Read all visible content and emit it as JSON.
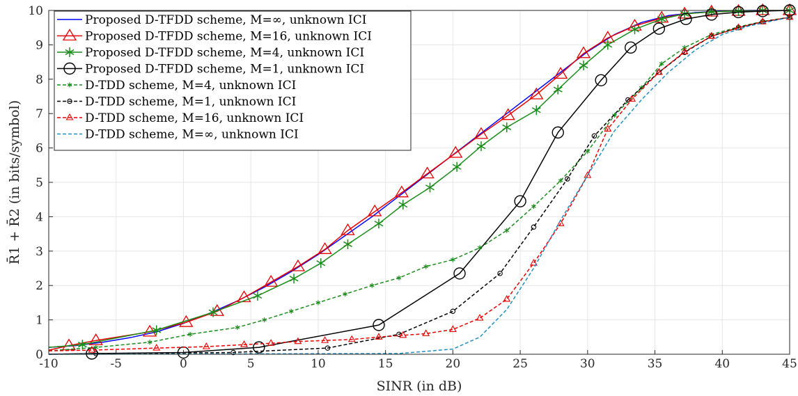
{
  "chart_data": {
    "type": "line",
    "title": "",
    "xlabel": "SINR (in dB)",
    "ylabel": "R̄1 + R̄2 (in bits/symbol)",
    "xlim": [
      -10,
      45
    ],
    "ylim": [
      0,
      10
    ],
    "xticks": [
      "-10",
      "-5",
      "0",
      "5",
      "10",
      "15",
      "20",
      "25",
      "30",
      "35",
      "40",
      "45"
    ],
    "yticks": [
      "0",
      "1",
      "2",
      "3",
      "4",
      "5",
      "6",
      "7",
      "8",
      "9",
      "10"
    ],
    "grid": true,
    "legend_position": "top-left",
    "series": [
      {
        "name": "Proposed D-TFDD scheme, M=∞, unknown ICI",
        "color": "#0000ff",
        "dash": "solid",
        "marker": "none",
        "points": [
          [
            -10,
            0.2
          ],
          [
            -8,
            0.25
          ],
          [
            -6,
            0.35
          ],
          [
            -4,
            0.48
          ],
          [
            -2,
            0.65
          ],
          [
            0,
            0.9
          ],
          [
            2,
            1.2
          ],
          [
            4,
            1.55
          ],
          [
            6,
            1.95
          ],
          [
            8,
            2.4
          ],
          [
            10,
            2.9
          ],
          [
            12,
            3.45
          ],
          [
            14,
            4.0
          ],
          [
            16,
            4.6
          ],
          [
            18,
            5.2
          ],
          [
            20,
            5.8
          ],
          [
            22,
            6.4
          ],
          [
            24,
            7.0
          ],
          [
            26,
            7.6
          ],
          [
            28,
            8.2
          ],
          [
            30,
            8.8
          ],
          [
            32,
            9.3
          ],
          [
            34,
            9.65
          ],
          [
            36,
            9.85
          ],
          [
            38,
            9.94
          ],
          [
            40,
            9.98
          ],
          [
            42,
            10.0
          ],
          [
            45,
            10.0
          ]
        ]
      },
      {
        "name": "Proposed D-TFDD scheme, M=16, unknown ICI",
        "color": "#e60000",
        "dash": "solid",
        "marker": "triangle",
        "points": [
          [
            -10,
            0.12
          ],
          [
            -8.5,
            0.25
          ],
          [
            -6.5,
            0.4
          ],
          [
            -2.5,
            0.65
          ],
          [
            0.2,
            0.93
          ],
          [
            2.5,
            1.25
          ],
          [
            4.5,
            1.65
          ],
          [
            6.5,
            2.1
          ],
          [
            8.5,
            2.55
          ],
          [
            10.5,
            3.05
          ],
          [
            12.2,
            3.6
          ],
          [
            14.2,
            4.15
          ],
          [
            16.2,
            4.7
          ],
          [
            18.1,
            5.25
          ],
          [
            20.2,
            5.85
          ],
          [
            22.1,
            6.4
          ],
          [
            24.1,
            6.95
          ],
          [
            26.2,
            7.55
          ],
          [
            28,
            8.15
          ],
          [
            29.7,
            8.75
          ],
          [
            31.5,
            9.2
          ],
          [
            33.5,
            9.55
          ],
          [
            35.5,
            9.78
          ],
          [
            37.2,
            9.9
          ],
          [
            39.2,
            9.96
          ],
          [
            41.2,
            9.98
          ],
          [
            43,
            10.0
          ],
          [
            45,
            10.0
          ]
        ]
      },
      {
        "name": "Proposed D-TFDD scheme, M=4, unknown ICI",
        "color": "#1a8c1a",
        "dash": "solid",
        "marker": "asterisk",
        "points": [
          [
            -10,
            0.2
          ],
          [
            -7.5,
            0.28
          ],
          [
            -2,
            0.7
          ],
          [
            2.2,
            1.22
          ],
          [
            5.5,
            1.7
          ],
          [
            8.2,
            2.2
          ],
          [
            10.2,
            2.65
          ],
          [
            12.2,
            3.2
          ],
          [
            14.5,
            3.8
          ],
          [
            16.3,
            4.35
          ],
          [
            18.3,
            4.85
          ],
          [
            20.3,
            5.45
          ],
          [
            22.1,
            6.05
          ],
          [
            24,
            6.6
          ],
          [
            26.2,
            7.1
          ],
          [
            27.8,
            7.7
          ],
          [
            29.7,
            8.4
          ],
          [
            31.5,
            9.0
          ],
          [
            33.5,
            9.45
          ],
          [
            35.5,
            9.75
          ],
          [
            37.2,
            9.9
          ],
          [
            39.2,
            9.96
          ],
          [
            41.2,
            9.98
          ],
          [
            43,
            10.0
          ],
          [
            45,
            10.0
          ]
        ]
      },
      {
        "name": "Proposed D-TFDD scheme, M=1, unknown ICI",
        "color": "#000000",
        "dash": "solid",
        "marker": "circle",
        "points": [
          [
            -10,
            0.0
          ],
          [
            -6.8,
            0.02
          ],
          [
            0,
            0.05
          ],
          [
            5.6,
            0.2
          ],
          [
            14.5,
            0.85
          ],
          [
            20.5,
            2.35
          ],
          [
            25,
            4.45
          ],
          [
            27.8,
            6.45
          ],
          [
            31,
            7.97
          ],
          [
            33.2,
            8.92
          ],
          [
            35.3,
            9.47
          ],
          [
            37.3,
            9.75
          ],
          [
            39.2,
            9.88
          ],
          [
            41.2,
            9.95
          ],
          [
            43,
            9.98
          ],
          [
            45,
            10.0
          ]
        ]
      },
      {
        "name": "D-TDD scheme, M=4, unknown ICI",
        "color": "#1a8c1a",
        "dash": "dashed",
        "marker": "dot",
        "points": [
          [
            -10,
            0.1
          ],
          [
            -6.5,
            0.2
          ],
          [
            -2.5,
            0.35
          ],
          [
            0.5,
            0.58
          ],
          [
            4,
            0.78
          ],
          [
            6,
            1.0
          ],
          [
            8,
            1.25
          ],
          [
            10,
            1.5
          ],
          [
            12,
            1.75
          ],
          [
            14,
            2.0
          ],
          [
            16,
            2.22
          ],
          [
            18,
            2.55
          ],
          [
            20,
            2.75
          ],
          [
            22,
            3.1
          ],
          [
            24,
            3.6
          ],
          [
            26,
            4.3
          ],
          [
            28,
            5.05
          ],
          [
            30,
            5.9
          ],
          [
            32,
            6.95
          ],
          [
            34,
            7.75
          ],
          [
            35.5,
            8.45
          ],
          [
            37.2,
            8.92
          ],
          [
            39.2,
            9.3
          ],
          [
            41.2,
            9.52
          ],
          [
            43,
            9.68
          ],
          [
            45,
            9.8
          ]
        ]
      },
      {
        "name": "D-TDD scheme, M=1, unknown ICI",
        "color": "#000000",
        "dash": "dashed",
        "marker": "small-circle",
        "points": [
          [
            -10,
            0.0
          ],
          [
            -6.5,
            0.02
          ],
          [
            3.7,
            0.05
          ],
          [
            10.7,
            0.18
          ],
          [
            16,
            0.58
          ],
          [
            20,
            1.25
          ],
          [
            23.5,
            2.35
          ],
          [
            26,
            3.7
          ],
          [
            28.5,
            5.1
          ],
          [
            30.5,
            6.35
          ],
          [
            33,
            7.4
          ],
          [
            35.3,
            8.2
          ],
          [
            37.2,
            8.78
          ],
          [
            39.2,
            9.25
          ],
          [
            41.2,
            9.5
          ],
          [
            43,
            9.67
          ],
          [
            45,
            9.8
          ]
        ]
      },
      {
        "name": "D-TDD scheme, M=16, unknown ICI",
        "color": "#e60000",
        "dash": "dashed",
        "marker": "small-triangle",
        "points": [
          [
            -10,
            0.1
          ],
          [
            -6.8,
            0.12
          ],
          [
            -2,
            0.18
          ],
          [
            1.7,
            0.22
          ],
          [
            4.5,
            0.28
          ],
          [
            6.5,
            0.32
          ],
          [
            8.5,
            0.37
          ],
          [
            10.5,
            0.4
          ],
          [
            12.5,
            0.43
          ],
          [
            14.5,
            0.5
          ],
          [
            16.3,
            0.55
          ],
          [
            18,
            0.6
          ],
          [
            20,
            0.72
          ],
          [
            22,
            1.05
          ],
          [
            24,
            1.6
          ],
          [
            26,
            2.65
          ],
          [
            28,
            3.8
          ],
          [
            30,
            5.2
          ],
          [
            31.5,
            6.55
          ],
          [
            33.3,
            7.42
          ],
          [
            35.3,
            8.2
          ],
          [
            37.2,
            8.8
          ],
          [
            39.2,
            9.25
          ],
          [
            41.2,
            9.5
          ],
          [
            43,
            9.67
          ],
          [
            45,
            9.8
          ]
        ]
      },
      {
        "name": "D-TDD scheme, M=∞, unknown ICI",
        "color": "#1f8fbf",
        "dash": "dashed",
        "marker": "none",
        "points": [
          [
            -10,
            0.0
          ],
          [
            16,
            0.02
          ],
          [
            20,
            0.15
          ],
          [
            22,
            0.5
          ],
          [
            24,
            1.3
          ],
          [
            26,
            2.5
          ],
          [
            28,
            3.9
          ],
          [
            30,
            5.2
          ],
          [
            32,
            6.5
          ],
          [
            34,
            7.4
          ],
          [
            36,
            8.2
          ],
          [
            38,
            8.85
          ],
          [
            40,
            9.3
          ],
          [
            42,
            9.55
          ],
          [
            45,
            9.8
          ]
        ]
      }
    ]
  }
}
